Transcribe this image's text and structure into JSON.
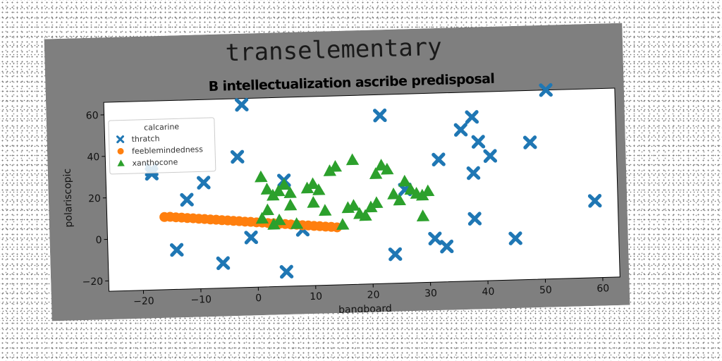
{
  "chart_data": {
    "type": "scatter",
    "suptitle": "transelementary",
    "title": "B intellectualization ascribe predisposal",
    "xlabel": "bangboard",
    "ylabel": "polariscopic",
    "xlim": [
      -26,
      63
    ],
    "ylim": [
      -25,
      66
    ],
    "xticks": [
      -20,
      -10,
      0,
      10,
      20,
      30,
      40,
      50,
      60
    ],
    "yticks": [
      -20,
      0,
      20,
      40,
      60
    ],
    "grid": false,
    "legend": {
      "title": "calcarine",
      "placement": "top-left"
    },
    "series": [
      {
        "name": "thratch",
        "marker": "x",
        "color": "#1f77b4",
        "points": [
          [
            -2,
            63
          ],
          [
            -18,
            33
          ],
          [
            -18,
            31
          ],
          [
            -3,
            38
          ],
          [
            -12,
            18
          ],
          [
            -9,
            26
          ],
          [
            -1,
            -1
          ],
          [
            -14,
            -6
          ],
          [
            -6,
            -13
          ],
          [
            5,
            -18
          ],
          [
            5,
            26
          ],
          [
            8,
            2
          ],
          [
            22,
            56
          ],
          [
            24,
            -11
          ],
          [
            26,
            20
          ],
          [
            31,
            -4
          ],
          [
            32,
            34
          ],
          [
            33,
            -8
          ],
          [
            36,
            48
          ],
          [
            38,
            54
          ],
          [
            38,
            27
          ],
          [
            38,
            5
          ],
          [
            39,
            42
          ],
          [
            41,
            35
          ],
          [
            45,
            -5
          ],
          [
            48,
            41
          ],
          [
            51,
            66
          ],
          [
            59,
            12
          ]
        ]
      },
      {
        "name": "feeblemindedness",
        "marker": "o",
        "color": "#ff7f0e",
        "points": [
          [
            -16,
            10
          ],
          [
            -15,
            10
          ],
          [
            -14,
            9.7
          ],
          [
            -13,
            9.5
          ],
          [
            -12,
            9.2
          ],
          [
            -11,
            9
          ],
          [
            -10,
            8.7
          ],
          [
            -9,
            8.5
          ],
          [
            -8,
            8.2
          ],
          [
            -7,
            8
          ],
          [
            -6,
            7.7
          ],
          [
            -5,
            7.5
          ],
          [
            -4,
            7.2
          ],
          [
            -3,
            7
          ],
          [
            -2,
            6.7
          ],
          [
            -1,
            6.5
          ],
          [
            0,
            6.2
          ],
          [
            1,
            6
          ],
          [
            2,
            5.7
          ],
          [
            3,
            5.5
          ],
          [
            4,
            5.2
          ],
          [
            5,
            5
          ],
          [
            6,
            4.7
          ],
          [
            7,
            4.5
          ],
          [
            8,
            4.2
          ],
          [
            9,
            4
          ],
          [
            10,
            3.7
          ],
          [
            11,
            3.5
          ],
          [
            12,
            3.2
          ],
          [
            13,
            3
          ],
          [
            14,
            2.7
          ]
        ]
      },
      {
        "name": "xanthocone",
        "marker": "^",
        "color": "#2ca02c",
        "points": [
          [
            1,
            28
          ],
          [
            2,
            22
          ],
          [
            3,
            19
          ],
          [
            4,
            21
          ],
          [
            5,
            24
          ],
          [
            6,
            20
          ],
          [
            3,
            5
          ],
          [
            2,
            12
          ],
          [
            1,
            8
          ],
          [
            4,
            7
          ],
          [
            6,
            14
          ],
          [
            7,
            5
          ],
          [
            9,
            22
          ],
          [
            10,
            15
          ],
          [
            10,
            24
          ],
          [
            11,
            21
          ],
          [
            12,
            11
          ],
          [
            13,
            30
          ],
          [
            14,
            32
          ],
          [
            15,
            4
          ],
          [
            16,
            12
          ],
          [
            17,
            13
          ],
          [
            17,
            35
          ],
          [
            18,
            9
          ],
          [
            19,
            8
          ],
          [
            20,
            12
          ],
          [
            21,
            28
          ],
          [
            21,
            14
          ],
          [
            22,
            32
          ],
          [
            23,
            30
          ],
          [
            24,
            18
          ],
          [
            25,
            15
          ],
          [
            26,
            24
          ],
          [
            27,
            20
          ],
          [
            28,
            18
          ],
          [
            29,
            17
          ],
          [
            29,
            7
          ],
          [
            30,
            19
          ]
        ]
      }
    ]
  }
}
